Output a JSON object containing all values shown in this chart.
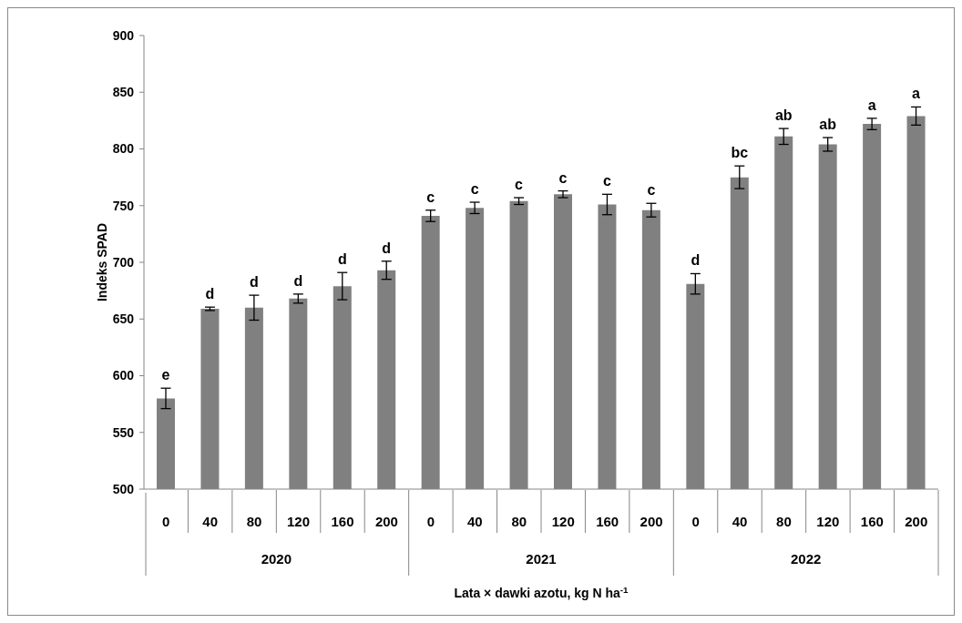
{
  "chart_data": {
    "type": "bar",
    "xlabel": "Lata × dawki azotu, kg N ha$^{-1}$",
    "ylabel": "Indeks SPAD",
    "categories": [
      "0",
      "40",
      "80",
      "120",
      "160",
      "200",
      "0",
      "40",
      "80",
      "120",
      "160",
      "200",
      "0",
      "40",
      "80",
      "120",
      "160",
      "200"
    ],
    "values": [
      580,
      659,
      660,
      668,
      679,
      693,
      741,
      748,
      754,
      760,
      751,
      746,
      681,
      775,
      811,
      804,
      822,
      829
    ],
    "errors": [
      9,
      1.5,
      11,
      4,
      12,
      8,
      5,
      5,
      3,
      3,
      9,
      6,
      9,
      10,
      7,
      6,
      5,
      8
    ],
    "value_labels": [
      "e",
      "d",
      "d",
      "d",
      "d",
      "d",
      "c",
      "c",
      "c",
      "c",
      "c",
      "c",
      "d",
      "bc",
      "ab",
      "ab",
      "a",
      "a"
    ],
    "color": "#808080",
    "ylim": [
      500,
      900
    ],
    "yticks": [
      500,
      550,
      600,
      650,
      700,
      750,
      800,
      850,
      900
    ],
    "annotations": [
      "2020",
      "2021",
      "2022"
    ]
  }
}
